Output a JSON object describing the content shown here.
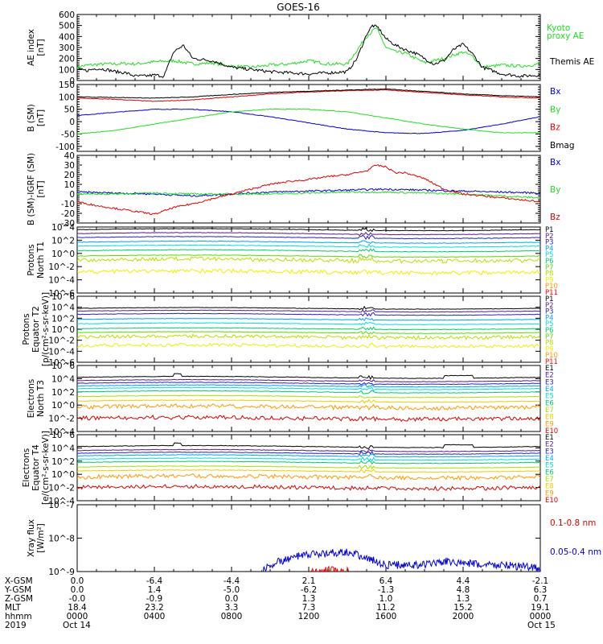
{
  "title": "GOES-16",
  "colors": {
    "black": "#000000",
    "red": "#e00000",
    "green": "#22dd22",
    "blue": "#0000cc",
    "p": [
      "#000000",
      "#551a8b",
      "#2222cc",
      "#00a0ff",
      "#00dddd",
      "#00cc66",
      "#55dd00",
      "#bbdd00",
      "#eeee00",
      "#ff9900",
      "#ff0000"
    ],
    "e": [
      "#000000",
      "#551a8b",
      "#2222cc",
      "#00a0ff",
      "#00dddd",
      "#00cc66",
      "#aadd00",
      "#eecc00",
      "#ff9900",
      "#dd0000"
    ]
  },
  "chart_data": [
    {
      "type": "line",
      "ylabel": "AE index\n[nT]",
      "ylim": [
        0,
        600
      ],
      "ticks": [
        "0",
        "100",
        "200",
        "300",
        "400",
        "500",
        "600"
      ],
      "tick_values": [
        0,
        100,
        200,
        300,
        400,
        500,
        600
      ],
      "scale": "linear",
      "legend": [
        {
          "text": "Kyoto",
          "color": "green"
        },
        {
          "text": "proxy AE",
          "color": "green"
        },
        {
          "text": "Themis AE",
          "color": "black"
        }
      ],
      "series": [
        {
          "name": "Kyoto proxy AE",
          "color": "green",
          "x": [
            0,
            0.5,
            1,
            1.5,
            2,
            2.5,
            3,
            4,
            5,
            6,
            7,
            8,
            9,
            10,
            11,
            12,
            13,
            14,
            15,
            15.5,
            16,
            16.5,
            17,
            18,
            19,
            20,
            20.5,
            21,
            22,
            23,
            24
          ],
          "y": [
            120,
            140,
            145,
            150,
            150,
            155,
            150,
            170,
            180,
            150,
            160,
            130,
            120,
            140,
            150,
            180,
            150,
            150,
            400,
            480,
            300,
            260,
            250,
            160,
            200,
            260,
            220,
            120,
            140,
            130,
            150
          ]
        },
        {
          "name": "Themis AE",
          "color": "black",
          "x": [
            0,
            0.5,
            1,
            1.5,
            2,
            2.5,
            3,
            3.5,
            4,
            4.5,
            5,
            5.5,
            6,
            7,
            8,
            9,
            10,
            11,
            12,
            13,
            14,
            14.5,
            15,
            15.3,
            15.6,
            16,
            16.5,
            17,
            17.5,
            18,
            18.5,
            19,
            19.5,
            20,
            20.5,
            21,
            22,
            23,
            24
          ],
          "y": [
            100,
            90,
            110,
            100,
            80,
            70,
            40,
            40,
            50,
            40,
            260,
            320,
            200,
            180,
            120,
            100,
            80,
            70,
            60,
            70,
            80,
            200,
            420,
            500,
            480,
            380,
            320,
            280,
            250,
            200,
            150,
            180,
            280,
            330,
            240,
            120,
            60,
            40,
            50
          ]
        }
      ]
    },
    {
      "type": "line",
      "ylabel": "B (SM)\n[nT]",
      "ylim": [
        -120,
        150
      ],
      "ticks": [
        "-100",
        "-50",
        "0",
        "50",
        "100",
        "150"
      ],
      "tick_values": [
        -100,
        -50,
        0,
        50,
        100,
        150
      ],
      "scale": "linear",
      "legend": [
        {
          "text": "Bx",
          "color": "blue"
        },
        {
          "text": "By",
          "color": "green"
        },
        {
          "text": "Bz",
          "color": "red"
        },
        {
          "text": "Bmag",
          "color": "black"
        }
      ],
      "series": [
        {
          "name": "Bx",
          "color": "blue",
          "x": [
            0,
            2,
            4,
            6,
            8,
            10,
            12,
            14,
            16,
            18,
            20,
            22,
            24
          ],
          "y": [
            25,
            38,
            50,
            50,
            40,
            20,
            -5,
            -30,
            -45,
            -48,
            -35,
            -10,
            20
          ]
        },
        {
          "name": "By",
          "color": "green",
          "x": [
            0,
            2,
            4,
            6,
            8,
            10,
            12,
            14,
            16,
            18,
            20,
            22,
            24
          ],
          "y": [
            -50,
            -35,
            -10,
            15,
            40,
            50,
            50,
            40,
            15,
            -10,
            -30,
            -45,
            -45
          ]
        },
        {
          "name": "Bz",
          "color": "red",
          "x": [
            0,
            2,
            4,
            6,
            8,
            10,
            12,
            14,
            16,
            18,
            20,
            22,
            24
          ],
          "y": [
            95,
            90,
            82,
            88,
            100,
            112,
            120,
            125,
            128,
            118,
            108,
            100,
            95
          ]
        },
        {
          "name": "Bmag",
          "color": "black",
          "x": [
            0,
            2,
            4,
            6,
            8,
            10,
            12,
            14,
            16,
            18,
            20,
            22,
            24
          ],
          "y": [
            100,
            98,
            95,
            100,
            110,
            118,
            123,
            128,
            132,
            122,
            112,
            105,
            100
          ]
        }
      ]
    },
    {
      "type": "line",
      "ylabel": "B (SM)-IGRF (SM)\n[nT]",
      "ylim": [
        -30,
        40
      ],
      "ticks": [
        "-30",
        "-20",
        "-10",
        "0",
        "10",
        "20",
        "30",
        "40"
      ],
      "tick_values": [
        -30,
        -20,
        -10,
        0,
        10,
        20,
        30,
        40
      ],
      "scale": "linear",
      "legend": [
        {
          "text": "Bx",
          "color": "blue"
        },
        {
          "text": "By",
          "color": "green"
        },
        {
          "text": "Bz",
          "color": "red"
        }
      ],
      "series": [
        {
          "name": "Bx",
          "color": "blue",
          "x": [
            0,
            2,
            4,
            6,
            8,
            10,
            12,
            14,
            16,
            18,
            20,
            22,
            24
          ],
          "y": [
            2,
            1,
            0,
            -2,
            0,
            2,
            3,
            4,
            5,
            4,
            3,
            2,
            1
          ]
        },
        {
          "name": "By",
          "color": "green",
          "x": [
            0,
            2,
            4,
            6,
            8,
            10,
            12,
            14,
            16,
            18,
            20,
            22,
            24
          ],
          "y": [
            0,
            0,
            1,
            0,
            0,
            0,
            1,
            2,
            2,
            1,
            0,
            -2,
            -4
          ]
        },
        {
          "name": "Bz",
          "color": "red",
          "x": [
            0,
            1,
            2,
            3,
            4,
            5,
            6,
            7,
            8,
            9,
            10,
            11,
            12,
            13,
            14,
            15,
            15.5,
            16,
            16.5,
            17,
            18,
            19,
            20,
            21,
            22,
            23,
            24
          ],
          "y": [
            -8,
            -12,
            -15,
            -18,
            -21,
            -14,
            -10,
            -5,
            0,
            5,
            10,
            13,
            15,
            18,
            20,
            24,
            30,
            28,
            22,
            22,
            16,
            5,
            0,
            -2,
            -4,
            -6,
            -8
          ]
        }
      ]
    },
    {
      "type": "line",
      "ylabel": "Protons\nNorth T1",
      "ylim": [
        -6,
        4
      ],
      "ticks": [
        "10^4",
        "10^2",
        "10^0",
        "10^-2",
        "10^-4",
        "10^-6"
      ],
      "tick_values": [
        4,
        2,
        0,
        -2,
        -4,
        -6
      ],
      "scale": "log",
      "legend": [
        {
          "text": "P1"
        },
        {
          "text": "P2"
        },
        {
          "text": "P3"
        },
        {
          "text": "P4"
        },
        {
          "text": "P5"
        },
        {
          "text": "P6"
        },
        {
          "text": "P7"
        },
        {
          "text": "P8"
        },
        {
          "text": "P9"
        },
        {
          "text": "P10"
        },
        {
          "text": "P11"
        }
      ],
      "levels": [
        3.6,
        3.0,
        2.4,
        1.7,
        1.1,
        0.4,
        -0.4,
        -1.0,
        -2.8
      ]
    },
    {
      "type": "line",
      "ylabel": "Protons\nEquator T2\n[p/(cm²-s-sr-keV)]",
      "ylim": [
        -6,
        6
      ],
      "ticks": [
        "10^6",
        "10^4",
        "10^2",
        "10^0",
        "10^-2",
        "10^-4",
        "10^-6"
      ],
      "tick_values": [
        6,
        4,
        2,
        0,
        -2,
        -4,
        -6
      ],
      "scale": "log",
      "legend": [
        {
          "text": "P1"
        },
        {
          "text": "P2"
        },
        {
          "text": "P3"
        },
        {
          "text": "P4"
        },
        {
          "text": "P5"
        },
        {
          "text": "P6"
        },
        {
          "text": "P7"
        },
        {
          "text": "P8"
        },
        {
          "text": "P9"
        },
        {
          "text": "P10"
        },
        {
          "text": "P11"
        }
      ],
      "levels": [
        3.8,
        3.3,
        2.7,
        1.8,
        1.0,
        0.1,
        -0.6,
        -1.4,
        -3.0
      ]
    },
    {
      "type": "line",
      "ylabel": "Electrons\nNorth T3",
      "ylim": [
        -4,
        6
      ],
      "ticks": [
        "10^6",
        "10^4",
        "10^2",
        "10^0",
        "10^-2",
        "10^-4"
      ],
      "tick_values": [
        6,
        4,
        2,
        0,
        -2,
        -4
      ],
      "scale": "log",
      "legend": [
        {
          "text": "E1"
        },
        {
          "text": "E2"
        },
        {
          "text": "E3"
        },
        {
          "text": "E4"
        },
        {
          "text": "E5"
        },
        {
          "text": "E6"
        },
        {
          "text": "E7"
        },
        {
          "text": "E8"
        },
        {
          "text": "E9"
        },
        {
          "text": "E10"
        }
      ],
      "levels": [
        4.2,
        3.7,
        3.3,
        2.9,
        2.5,
        2.0,
        1.3,
        0.6,
        -0.3,
        -2.0
      ]
    },
    {
      "type": "line",
      "ylabel": "Electrons\nEquator T4\n[e/(cm²-s-sr-keV)]",
      "ylim": [
        -4,
        6
      ],
      "ticks": [
        "10^6",
        "10^4",
        "10^2",
        "10^0",
        "10^-2",
        "10^-4"
      ],
      "tick_values": [
        6,
        4,
        2,
        0,
        -2,
        -4
      ],
      "scale": "log",
      "legend": [
        {
          "text": "E1"
        },
        {
          "text": "E2"
        },
        {
          "text": "E3"
        },
        {
          "text": "E4"
        },
        {
          "text": "E5"
        },
        {
          "text": "E6"
        },
        {
          "text": "E7"
        },
        {
          "text": "E8"
        },
        {
          "text": "E9"
        },
        {
          "text": "E10"
        }
      ],
      "levels": [
        4.2,
        3.6,
        3.2,
        2.8,
        2.3,
        1.8,
        1.1,
        0.5,
        -0.4,
        -2.0
      ]
    },
    {
      "type": "line",
      "ylabel": "Xray flux\n[W/m²]",
      "ylim": [
        -9,
        -7
      ],
      "ticks": [
        "10^-7",
        "10^-8",
        "10^-9"
      ],
      "tick_values": [
        -7,
        -8,
        -9
      ],
      "scale": "log",
      "legend": [
        {
          "text": "0.1-0.8 nm",
          "color": "red"
        },
        {
          "text": "0.05-0.4 nm",
          "color": "blue"
        }
      ],
      "series": [
        {
          "name": "0.05-0.4 nm",
          "color": "blue",
          "x": [
            0,
            1,
            2,
            3,
            4,
            5,
            6,
            7,
            8,
            9,
            10,
            11,
            12,
            13,
            14,
            15,
            16,
            17,
            18,
            19,
            20,
            21,
            22,
            23,
            24
          ],
          "y": [
            -9.3,
            -9.3,
            -9.3,
            -9.3,
            -9.3,
            -9.3,
            -9.3,
            -9.3,
            -9.3,
            -9.3,
            -8.8,
            -8.6,
            -8.5,
            -8.45,
            -8.4,
            -8.6,
            -8.8,
            -8.8,
            -8.8,
            -8.7,
            -8.75,
            -8.8,
            -8.8,
            -8.85,
            -8.9
          ]
        },
        {
          "name": "0.1-0.8 nm",
          "color": "red",
          "x": [
            0,
            10,
            11,
            12,
            13,
            14,
            15,
            16,
            17,
            18,
            24
          ],
          "y": [
            -9.5,
            -9.5,
            -9.3,
            -9.05,
            -8.95,
            -9.0,
            -9.2,
            -9.4,
            -9.5,
            -9.5,
            -9.5
          ]
        }
      ]
    }
  ],
  "x_axis": {
    "xlim": [
      0,
      24
    ],
    "tick_hours": [
      0,
      4,
      8,
      12,
      16,
      20,
      24
    ],
    "rows": [
      {
        "label": "X-GSM",
        "values": [
          "0.0",
          "-6.4",
          "-4.4",
          "2.1",
          "6.4",
          "4.4",
          "-2.1"
        ]
      },
      {
        "label": "Y-GSM",
        "values": [
          "0.0",
          "1.4",
          "-5.0",
          "-6.2",
          "-1.3",
          "4.8",
          "6.3"
        ]
      },
      {
        "label": "Z-GSM",
        "values": [
          "-0.0",
          "-0.9",
          "0.0",
          "1.3",
          "1.0",
          "1.3",
          "0.7"
        ]
      },
      {
        "label": "MLT",
        "values": [
          "18.4",
          "23.2",
          "3.3",
          "7.3",
          "11.2",
          "15.2",
          "19.1"
        ]
      },
      {
        "label": "hhmm",
        "values": [
          "0000",
          "0400",
          "0800",
          "1200",
          "1600",
          "2000",
          "0000"
        ]
      },
      {
        "label": "2019",
        "values": [
          "Oct 14",
          "",
          "",
          "",
          "",
          "",
          "Oct 15"
        ]
      }
    ]
  }
}
